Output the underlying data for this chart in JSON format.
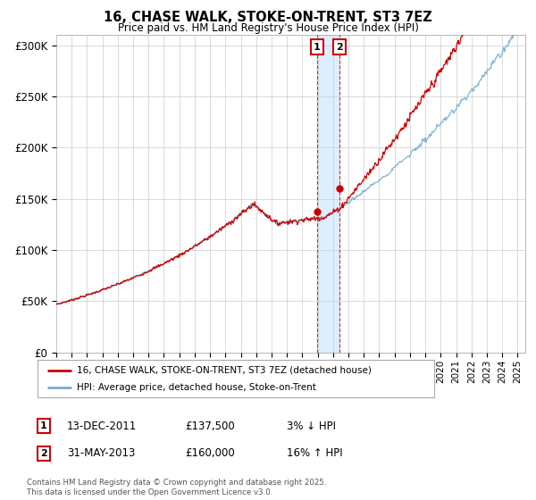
{
  "title": "16, CHASE WALK, STOKE-ON-TRENT, ST3 7EZ",
  "subtitle": "Price paid vs. HM Land Registry's House Price Index (HPI)",
  "ylabel_ticks": [
    "£0",
    "£50K",
    "£100K",
    "£150K",
    "£200K",
    "£250K",
    "£300K"
  ],
  "ytick_values": [
    0,
    50000,
    100000,
    150000,
    200000,
    250000,
    300000
  ],
  "ylim": [
    0,
    310000
  ],
  "xlim_start": 1995.0,
  "xlim_end": 2025.5,
  "hpi_color": "#7aaccc",
  "price_color": "#cc0000",
  "marker1_date": 2011.96,
  "marker1_price": 137500,
  "marker2_date": 2013.42,
  "marker2_price": 160000,
  "legend_line1": "16, CHASE WALK, STOKE-ON-TRENT, ST3 7EZ (detached house)",
  "legend_line2": "HPI: Average price, detached house, Stoke-on-Trent",
  "annotation1_num": "1",
  "annotation1_date": "13-DEC-2011",
  "annotation1_price": "£137,500",
  "annotation1_hpi": "3% ↓ HPI",
  "annotation2_num": "2",
  "annotation2_date": "31-MAY-2013",
  "annotation2_price": "£160,000",
  "annotation2_hpi": "16% ↑ HPI",
  "footer": "Contains HM Land Registry data © Crown copyright and database right 2025.\nThis data is licensed under the Open Government Licence v3.0.",
  "background_color": "#ffffff",
  "grid_color": "#cccccc",
  "shade_color": "#ddeeff"
}
